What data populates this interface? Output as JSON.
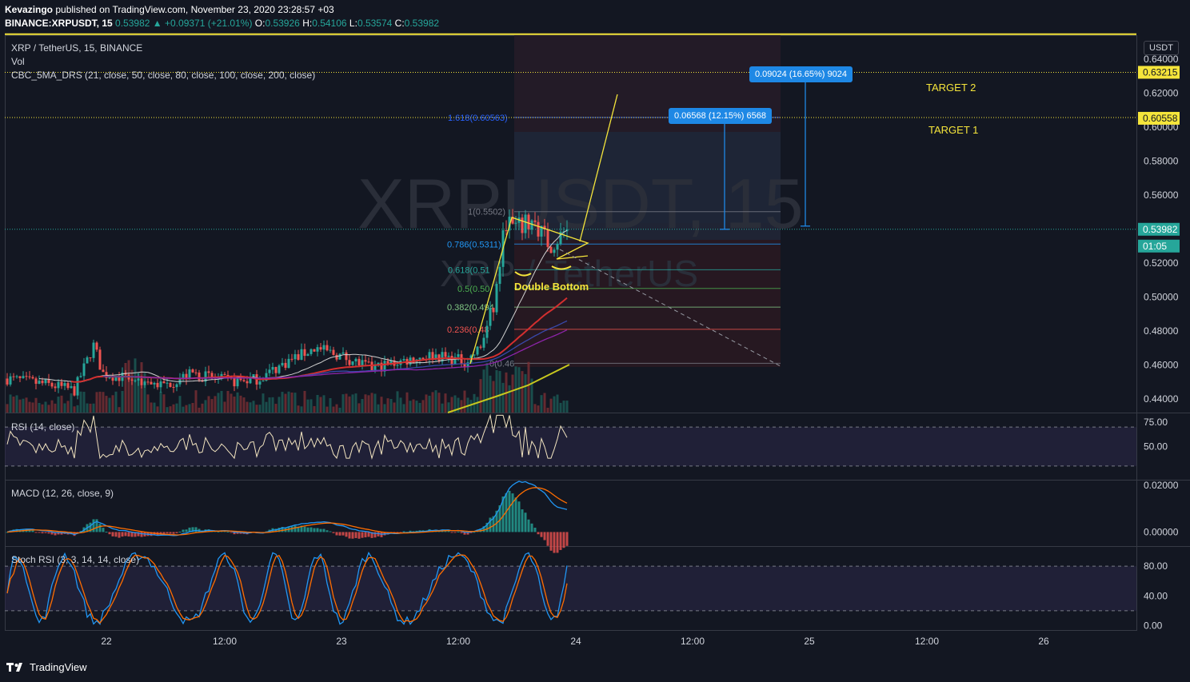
{
  "header": {
    "publisher": "Kevazingo",
    "published_text": "published on TradingView.com, November 23, 2020 23:28:57 +03",
    "symbol_line": "BINANCE:XRPUSDT, 15",
    "last": "0.53982",
    "change": "+0.09371 (+21.01%)",
    "o_label": "O:",
    "o": "0.53926",
    "h_label": "H:",
    "h": "0.54106",
    "l_label": "L:",
    "l": "0.53574",
    "c_label": "C:",
    "c": "0.53982"
  },
  "legend": {
    "title": "XRP / TetherUS, 15, BINANCE",
    "vol": "Vol",
    "ma": "CBC_5MA_DRS (21, close, 50, close, 80, close, 100, close, 200, close)"
  },
  "watermark": {
    "line1": "XRPUSDT, 15",
    "line2": "XRP / TetherUS"
  },
  "currency_badge": "USDT",
  "price_axis": {
    "ticks": [
      "0.64000",
      "0.62000",
      "0.60000",
      "0.58000",
      "0.56000",
      "0.54000",
      "0.52000",
      "0.50000",
      "0.48000",
      "0.46000",
      "0.44000"
    ],
    "last_price_label": "0.53982",
    "countdown": "01:05",
    "target2_label": "0.63215",
    "target1_label": "0.60558"
  },
  "annotations": {
    "target2": "TARGET 2",
    "target1": "TARGET 1",
    "double_bottom": "Double Bottom",
    "measure1": "0.06568 (12.15%) 6568",
    "measure2": "0.09024 (16.65%) 9024"
  },
  "fib_labels": {
    "f1618": "1.618(0.60563)",
    "f1": "1(0.5502)",
    "f786": "0.786(0.5311)",
    "f618": "0.618(0.51",
    "f5": "0.5(0.50",
    "f382": "0.382(0.494",
    "f236": "0.236(0.48",
    "f0": "0(0.46"
  },
  "rsi": {
    "title": "RSI (14, close)",
    "ticks": [
      "75.00",
      "50.00"
    ]
  },
  "macd": {
    "title": "MACD (12, 26, close, 9)",
    "ticks": [
      "0.02000",
      "0.00000"
    ]
  },
  "stoch": {
    "title": "Stoch RSI (3, 3, 14, 14, close)",
    "ticks": [
      "80.00",
      "40.00",
      "0.00"
    ]
  },
  "time_axis": {
    "ticks": [
      "22",
      "12:00",
      "23",
      "12:00",
      "24",
      "12:00",
      "25",
      "12:00",
      "26"
    ]
  },
  "brand": "TradingView",
  "colors": {
    "up": "#26a69a",
    "down": "#ef5350",
    "target": "#f5e53b",
    "measure": "#1e88e5",
    "bg": "#131722"
  },
  "chart_data": {
    "type": "candlestick",
    "symbol": "XRPUSDT",
    "interval": "15",
    "y_range": [
      0.432,
      0.654
    ],
    "key_levels": {
      "target2": 0.63215,
      "target1": 0.60558,
      "last": 0.53982,
      "top_line": 0.6546
    },
    "fib_levels": {
      "1.618": 0.60563,
      "1": 0.5502,
      "0.786": 0.5311,
      "0.618": 0.516,
      "0.5": 0.505,
      "0.382": 0.494,
      "0.236": 0.481,
      "0": 0.461
    },
    "rsi": {
      "levels": [
        70,
        30
      ],
      "ticks": [
        75,
        50
      ]
    },
    "stoch_rsi": {
      "levels": [
        80,
        20
      ],
      "ticks": [
        80,
        40,
        0
      ]
    }
  }
}
